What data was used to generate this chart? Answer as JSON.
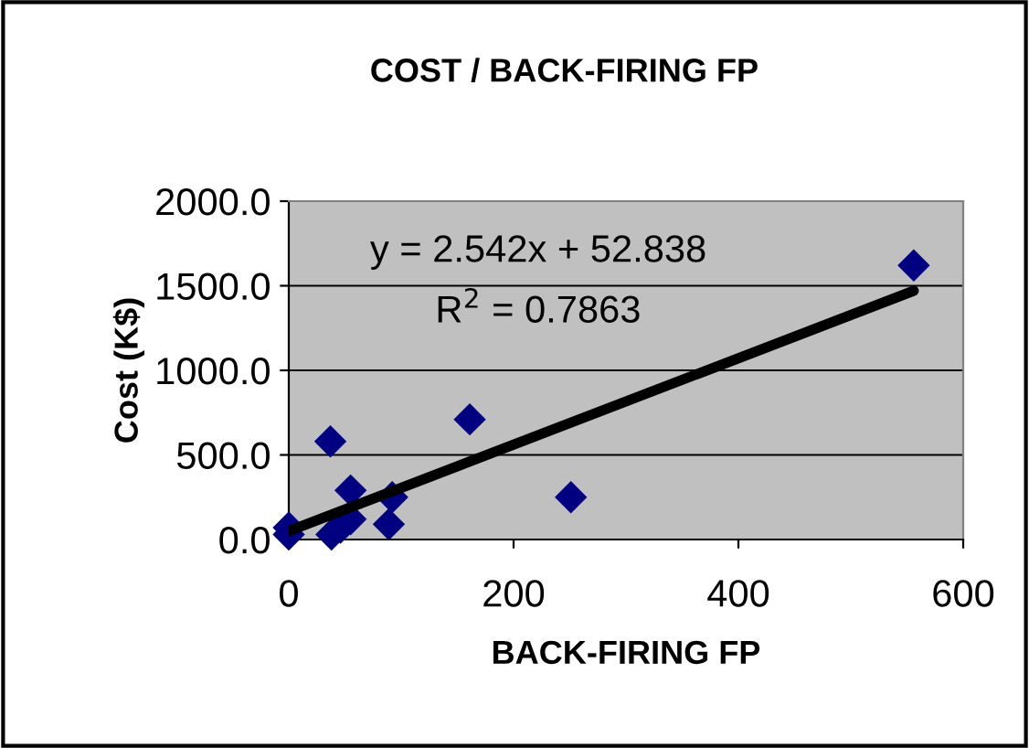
{
  "chart_data": {
    "type": "scatter",
    "title": "COST / BACK-FIRING FP",
    "xlabel": "BACK-FIRING FP",
    "ylabel": "Cost (K$)",
    "series": [
      {
        "color": "#000080",
        "marker": "diamond",
        "x": [
          0,
          0,
          37,
          38,
          46,
          55,
          55,
          89,
          92,
          161,
          251,
          556
        ],
        "values": [
          70,
          30,
          580,
          30,
          70,
          120,
          290,
          90,
          250,
          710,
          250,
          1620
        ]
      },
      {
        "type": "line",
        "color": "#000000",
        "marker": "none",
        "x": [
          0,
          556
        ],
        "values": [
          50,
          1470
        ]
      }
    ],
    "annotations": [
      "y = 2.542x + 52.838",
      "R$^{2}$ = 0.7863"
    ],
    "xlim": [
      0,
      600
    ],
    "ylim": [
      0,
      2000
    ],
    "xticks": [
      0,
      200,
      400,
      600
    ],
    "yticks": [
      {
        "value": 0,
        "label": "0.0"
      },
      {
        "value": 500,
        "label": "500.0"
      },
      {
        "value": 1000,
        "label": "1000.0"
      },
      {
        "value": 1500,
        "label": "1500.0"
      },
      {
        "value": 2000,
        "label": "2000.0"
      }
    ],
    "grid": "y",
    "legend": false
  }
}
